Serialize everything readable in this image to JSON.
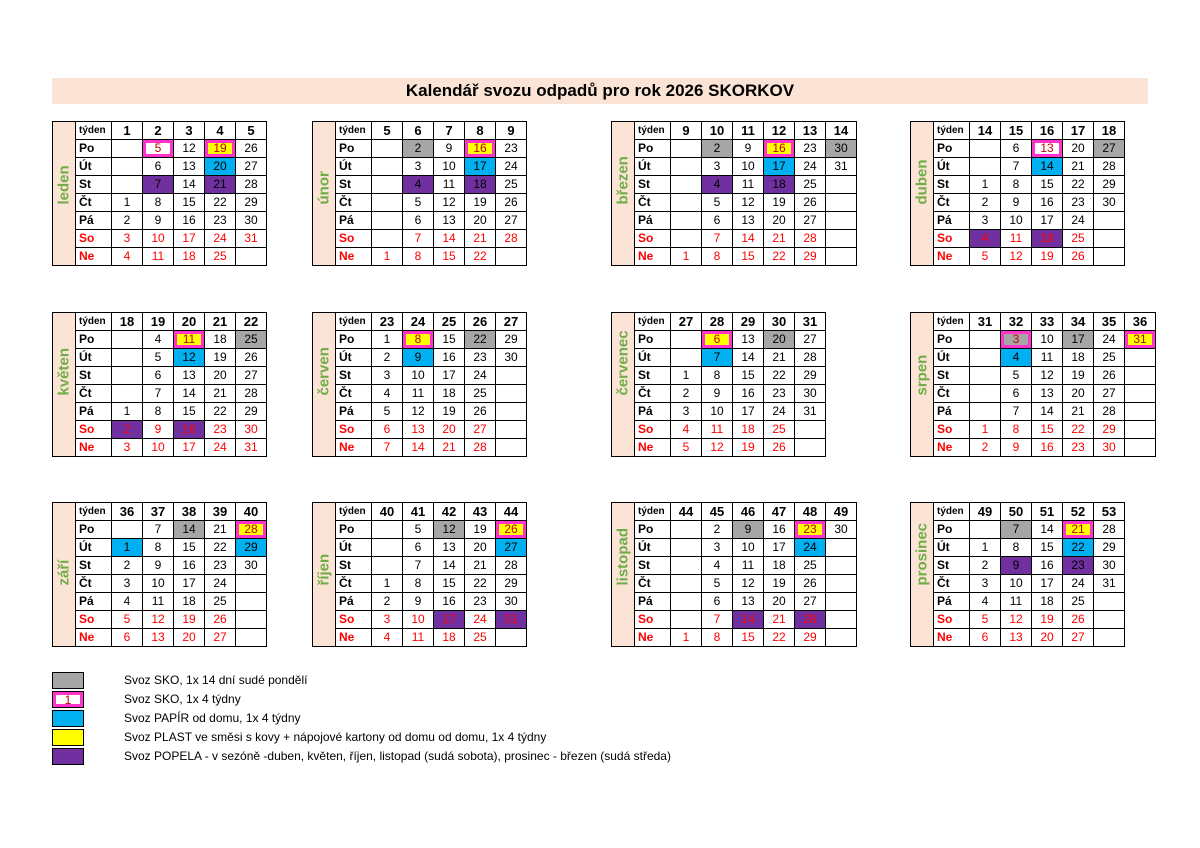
{
  "title": "Kalendář svozu odpadů pro rok 2026 SKORKOV",
  "day_labels": [
    "týden",
    "Po",
    "Út",
    "St",
    "Čt",
    "Pá",
    "So",
    "Ne"
  ],
  "months": [
    {
      "name": "leden",
      "weeks": [
        "1",
        "2",
        "3",
        "4",
        "5"
      ],
      "rows": [
        [
          "",
          "5",
          "12",
          "19",
          "26"
        ],
        [
          "",
          "6",
          "13",
          "20",
          "27"
        ],
        [
          "",
          "7",
          "14",
          "21",
          "28"
        ],
        [
          "1",
          "8",
          "15",
          "22",
          "29"
        ],
        [
          "2",
          "9",
          "16",
          "23",
          "30"
        ],
        [
          "3",
          "10",
          "17",
          "24",
          "31"
        ],
        [
          "4",
          "11",
          "18",
          "25",
          ""
        ]
      ],
      "marks": {
        "0-1": "pink",
        "0-3": "pink yellow",
        "1-3": "blue",
        "2-1": "purple",
        "2-3": "purple"
      }
    },
    {
      "name": "únor",
      "weeks": [
        "5",
        "6",
        "7",
        "8",
        "9"
      ],
      "rows": [
        [
          "",
          "2",
          "9",
          "16",
          "23"
        ],
        [
          "",
          "3",
          "10",
          "17",
          "24"
        ],
        [
          "",
          "4",
          "11",
          "18",
          "25"
        ],
        [
          "",
          "5",
          "12",
          "19",
          "26"
        ],
        [
          "",
          "6",
          "13",
          "20",
          "27"
        ],
        [
          "",
          "7",
          "14",
          "21",
          "28"
        ],
        [
          "1",
          "8",
          "15",
          "22",
          ""
        ]
      ],
      "marks": {
        "0-1": "gray",
        "0-3": "pink yellow",
        "1-3": "blue",
        "2-1": "purple",
        "2-3": "purple"
      }
    },
    {
      "name": "březen",
      "weeks": [
        "9",
        "10",
        "11",
        "12",
        "13",
        "14"
      ],
      "rows": [
        [
          "",
          "2",
          "9",
          "16",
          "23",
          "30"
        ],
        [
          "",
          "3",
          "10",
          "17",
          "24",
          "31"
        ],
        [
          "",
          "4",
          "11",
          "18",
          "25",
          ""
        ],
        [
          "",
          "5",
          "12",
          "19",
          "26",
          ""
        ],
        [
          "",
          "6",
          "13",
          "20",
          "27",
          ""
        ],
        [
          "",
          "7",
          "14",
          "21",
          "28",
          ""
        ],
        [
          "1",
          "8",
          "15",
          "22",
          "29",
          ""
        ]
      ],
      "marks": {
        "0-1": "gray",
        "0-3": "pink yellow",
        "0-5": "gray",
        "1-3": "blue",
        "2-1": "purple",
        "2-3": "purple"
      }
    },
    {
      "name": "duben",
      "weeks": [
        "14",
        "15",
        "16",
        "17",
        "18"
      ],
      "rows": [
        [
          "",
          "6",
          "13",
          "20",
          "27"
        ],
        [
          "",
          "7",
          "14",
          "21",
          "28"
        ],
        [
          "1",
          "8",
          "15",
          "22",
          "29"
        ],
        [
          "2",
          "9",
          "16",
          "23",
          "30"
        ],
        [
          "3",
          "10",
          "17",
          "24",
          ""
        ],
        [
          "4",
          "11",
          "18",
          "25",
          ""
        ],
        [
          "5",
          "12",
          "19",
          "26",
          ""
        ]
      ],
      "marks": {
        "0-2": "pink",
        "0-4": "gray",
        "1-2": "blue",
        "5-0": "purple",
        "5-2": "purple"
      }
    },
    {
      "name": "květen",
      "weeks": [
        "18",
        "19",
        "20",
        "21",
        "22"
      ],
      "rows": [
        [
          "",
          "4",
          "11",
          "18",
          "25"
        ],
        [
          "",
          "5",
          "12",
          "19",
          "26"
        ],
        [
          "",
          "6",
          "13",
          "20",
          "27"
        ],
        [
          "",
          "7",
          "14",
          "21",
          "28"
        ],
        [
          "1",
          "8",
          "15",
          "22",
          "29"
        ],
        [
          "2",
          "9",
          "16",
          "23",
          "30"
        ],
        [
          "3",
          "10",
          "17",
          "24",
          "31"
        ]
      ],
      "marks": {
        "0-2": "pink yellow",
        "0-4": "gray",
        "1-2": "blue",
        "5-0": "purple",
        "5-2": "purple"
      }
    },
    {
      "name": "červen",
      "weeks": [
        "23",
        "24",
        "25",
        "26",
        "27"
      ],
      "rows": [
        [
          "1",
          "8",
          "15",
          "22",
          "29"
        ],
        [
          "2",
          "9",
          "16",
          "23",
          "30"
        ],
        [
          "3",
          "10",
          "17",
          "24",
          ""
        ],
        [
          "4",
          "11",
          "18",
          "25",
          ""
        ],
        [
          "5",
          "12",
          "19",
          "26",
          ""
        ],
        [
          "6",
          "13",
          "20",
          "27",
          ""
        ],
        [
          "7",
          "14",
          "21",
          "28",
          ""
        ]
      ],
      "marks": {
        "0-1": "pink yellow",
        "0-3": "gray",
        "1-1": "blue"
      }
    },
    {
      "name": "červenec",
      "weeks": [
        "27",
        "28",
        "29",
        "30",
        "31"
      ],
      "rows": [
        [
          "",
          "6",
          "13",
          "20",
          "27"
        ],
        [
          "",
          "7",
          "14",
          "21",
          "28"
        ],
        [
          "1",
          "8",
          "15",
          "22",
          "29"
        ],
        [
          "2",
          "9",
          "16",
          "23",
          "30"
        ],
        [
          "3",
          "10",
          "17",
          "24",
          "31"
        ],
        [
          "4",
          "11",
          "18",
          "25",
          ""
        ],
        [
          "5",
          "12",
          "19",
          "26",
          ""
        ]
      ],
      "marks": {
        "0-1": "pink yellow",
        "0-3": "gray",
        "1-1": "blue"
      }
    },
    {
      "name": "srpen",
      "weeks": [
        "31",
        "32",
        "33",
        "34",
        "35",
        "36"
      ],
      "rows": [
        [
          "",
          "3",
          "10",
          "17",
          "24",
          "31"
        ],
        [
          "",
          "4",
          "11",
          "18",
          "25",
          ""
        ],
        [
          "",
          "5",
          "12",
          "19",
          "26",
          ""
        ],
        [
          "",
          "6",
          "13",
          "20",
          "27",
          ""
        ],
        [
          "",
          "7",
          "14",
          "21",
          "28",
          ""
        ],
        [
          "1",
          "8",
          "15",
          "22",
          "29",
          ""
        ],
        [
          "2",
          "9",
          "16",
          "23",
          "30",
          ""
        ]
      ],
      "marks": {
        "0-1": "pink gray",
        "0-3": "gray",
        "0-5": "pink yellow",
        "1-1": "blue"
      }
    },
    {
      "name": "září",
      "weeks": [
        "36",
        "37",
        "38",
        "39",
        "40"
      ],
      "rows": [
        [
          "",
          "7",
          "14",
          "21",
          "28"
        ],
        [
          "1",
          "8",
          "15",
          "22",
          "29"
        ],
        [
          "2",
          "9",
          "16",
          "23",
          "30"
        ],
        [
          "3",
          "10",
          "17",
          "24",
          ""
        ],
        [
          "4",
          "11",
          "18",
          "25",
          ""
        ],
        [
          "5",
          "12",
          "19",
          "26",
          ""
        ],
        [
          "6",
          "13",
          "20",
          "27",
          ""
        ]
      ],
      "marks": {
        "0-2": "gray",
        "0-4": "pink yellow",
        "1-0": "blue",
        "1-4": "blue"
      }
    },
    {
      "name": "říjen",
      "weeks": [
        "40",
        "41",
        "42",
        "43",
        "44"
      ],
      "rows": [
        [
          "",
          "5",
          "12",
          "19",
          "26"
        ],
        [
          "",
          "6",
          "13",
          "20",
          "27"
        ],
        [
          "",
          "7",
          "14",
          "21",
          "28"
        ],
        [
          "1",
          "8",
          "15",
          "22",
          "29"
        ],
        [
          "2",
          "9",
          "16",
          "23",
          "30"
        ],
        [
          "3",
          "10",
          "17",
          "24",
          "31"
        ],
        [
          "4",
          "11",
          "18",
          "25",
          ""
        ]
      ],
      "marks": {
        "0-2": "gray",
        "0-4": "pink yellow",
        "1-4": "blue",
        "5-2": "purple",
        "5-4": "purple"
      }
    },
    {
      "name": "listopad",
      "weeks": [
        "44",
        "45",
        "46",
        "47",
        "48",
        "49"
      ],
      "rows": [
        [
          "",
          "2",
          "9",
          "16",
          "23",
          "30"
        ],
        [
          "",
          "3",
          "10",
          "17",
          "24",
          ""
        ],
        [
          "",
          "4",
          "11",
          "18",
          "25",
          ""
        ],
        [
          "",
          "5",
          "12",
          "19",
          "26",
          ""
        ],
        [
          "",
          "6",
          "13",
          "20",
          "27",
          ""
        ],
        [
          "",
          "7",
          "14",
          "21",
          "28",
          ""
        ],
        [
          "1",
          "8",
          "15",
          "22",
          "29",
          ""
        ]
      ],
      "marks": {
        "0-2": "gray",
        "0-4": "pink yellow",
        "1-4": "blue",
        "5-2": "purple",
        "5-4": "purple"
      }
    },
    {
      "name": "prosinec",
      "weeks": [
        "49",
        "50",
        "51",
        "52",
        "53"
      ],
      "rows": [
        [
          "",
          "7",
          "14",
          "21",
          "28"
        ],
        [
          "1",
          "8",
          "15",
          "22",
          "29"
        ],
        [
          "2",
          "9",
          "16",
          "23",
          "30"
        ],
        [
          "3",
          "10",
          "17",
          "24",
          "31"
        ],
        [
          "4",
          "11",
          "18",
          "25",
          ""
        ],
        [
          "5",
          "12",
          "19",
          "26",
          ""
        ],
        [
          "6",
          "13",
          "20",
          "27",
          ""
        ]
      ],
      "marks": {
        "0-1": "gray",
        "0-3": "pink yellow",
        "1-3": "blue",
        "2-1": "purple",
        "2-3": "purple"
      }
    }
  ],
  "legend": [
    {
      "color": "#a6a6a6",
      "label": "",
      "text": "Svoz SKO, 1x 14 dní sudé pondělí"
    },
    {
      "color": "pink",
      "label": "1",
      "text": "Svoz SKO, 1x 4 týdny"
    },
    {
      "color": "#00b0f0",
      "label": "",
      "text": "Svoz PAPÍR od domu, 1x 4 týdny"
    },
    {
      "color": "#ffff00",
      "label": "",
      "text": "Svoz PLAST ve směsi s kovy + nápojové kartony od domu od domu, 1x 4 týdny"
    },
    {
      "color": "#7030a0",
      "label": "",
      "text": "Svoz POPELA - v sezóně -duben, květen, říjen, listopad (sudá sobota), prosinec - březen (sudá středa)"
    }
  ]
}
